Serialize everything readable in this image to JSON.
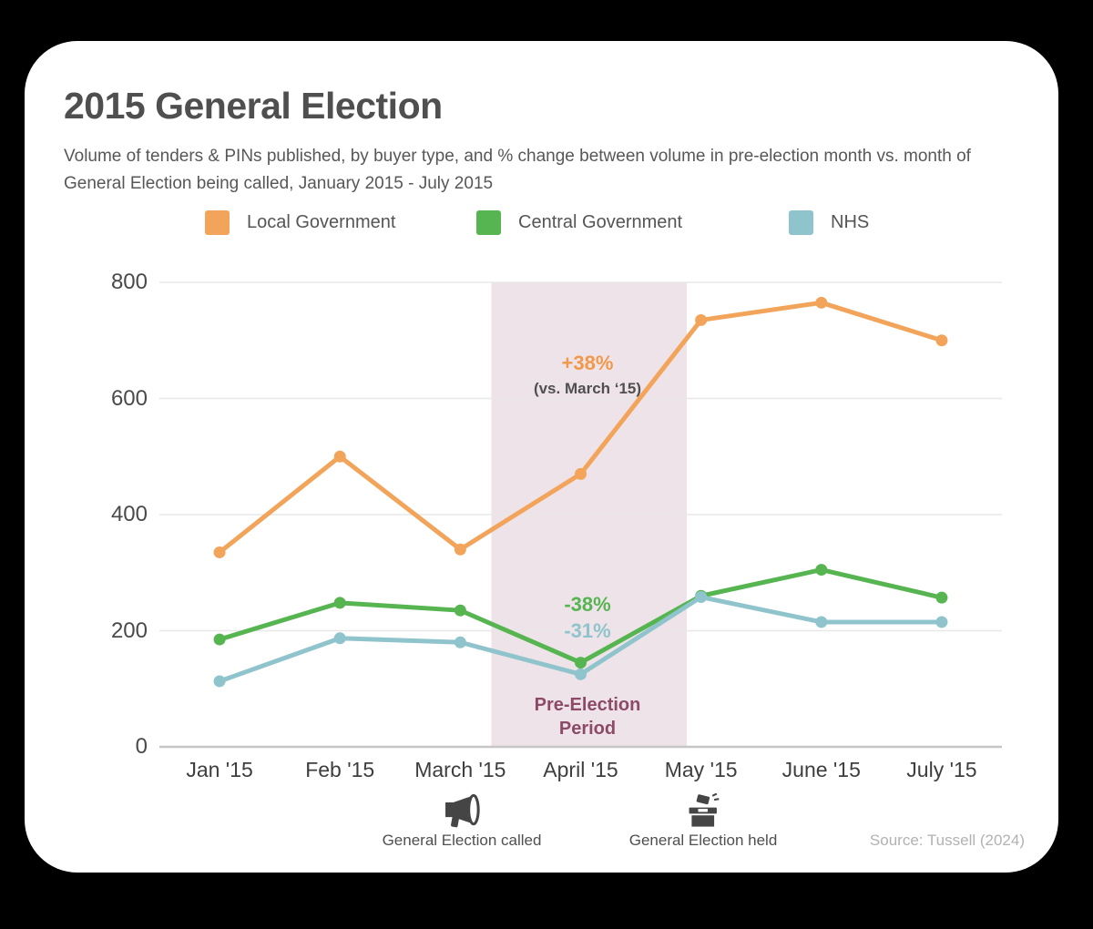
{
  "card": {
    "title": "2015 General Election",
    "subtitle": "Volume of tenders & PINs published, by buyer type, and % change between volume in pre-election month vs. month of General Election being called, January 2015 - July 2015",
    "source": "Source: Tussell (2024)"
  },
  "legend": [
    {
      "label": "Local Government",
      "color": "#F3A45B"
    },
    {
      "label": "Central Government",
      "color": "#57B551"
    },
    {
      "label": "NHS",
      "color": "#90C4CC"
    }
  ],
  "chart_data": {
    "type": "line",
    "title": "2015 General Election",
    "categories": [
      "Jan '15",
      "Feb '15",
      "March '15",
      "April '15",
      "May '15",
      "June '15",
      "July '15"
    ],
    "series": [
      {
        "name": "Local Government",
        "color": "#F3A45B",
        "values": [
          335,
          500,
          340,
          470,
          735,
          765,
          700
        ]
      },
      {
        "name": "Central Government",
        "color": "#57B551",
        "values": [
          185,
          248,
          235,
          145,
          260,
          305,
          257
        ]
      },
      {
        "name": "NHS",
        "color": "#90C4CC",
        "values": [
          113,
          187,
          180,
          125,
          258,
          215,
          215
        ]
      }
    ],
    "ylim": [
      0,
      800
    ],
    "yticks": [
      0,
      200,
      400,
      600,
      800
    ],
    "grid": true,
    "legend_position": "top",
    "highlight_band": {
      "label": "Pre-Election Period",
      "from_frac": 0.394,
      "to_frac": 0.626,
      "color": "#EFE3EA",
      "label_color": "#8C4A67"
    },
    "annotations": [
      {
        "text": "+38%",
        "color": "#F0994B"
      },
      {
        "text": "(vs. March ‘15)",
        "color": "#4f4f4f"
      },
      {
        "text": "-38%",
        "color": "#57B551"
      },
      {
        "text": "-31%",
        "color": "#90C4CC"
      }
    ],
    "events": [
      {
        "label": "General Election called",
        "icon": "megaphone",
        "month": "March '15"
      },
      {
        "label": "General Election held",
        "icon": "ballot-box",
        "month": "May '15"
      }
    ]
  }
}
